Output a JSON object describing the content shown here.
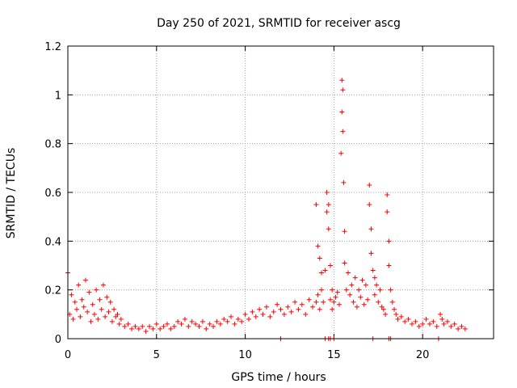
{
  "chart_data": {
    "type": "scatter",
    "title": "Day 250 of 2021, SRMTID for receiver ascg",
    "xlabel": "GPS time / hours",
    "ylabel": "SRMTID / TECUs",
    "xlim": [
      0,
      24
    ],
    "ylim": [
      0,
      1.2
    ],
    "xticks": [
      0,
      5,
      10,
      15,
      20
    ],
    "xtick_labels": [
      "0",
      "5",
      "10",
      "15",
      "20"
    ],
    "yticks": [
      0,
      0.2,
      0.4,
      0.6,
      0.8,
      1.0,
      1.2
    ],
    "ytick_labels": [
      "0",
      "0.2",
      "0.4",
      "0.6",
      "0.8",
      "1",
      "1.2"
    ],
    "grid": true,
    "marker": "+",
    "color": "#ff0000",
    "series": [
      {
        "name": "SRMTID",
        "x": [
          0.0,
          0.1,
          0.2,
          0.3,
          0.4,
          0.5,
          0.6,
          0.7,
          0.8,
          0.9,
          1.0,
          1.1,
          1.2,
          1.3,
          1.4,
          1.5,
          1.6,
          1.7,
          1.8,
          1.9,
          2.0,
          2.1,
          2.2,
          2.3,
          2.4,
          2.5,
          2.6,
          2.7,
          2.8,
          2.9,
          3.0,
          3.2,
          3.4,
          3.6,
          3.8,
          4.0,
          4.2,
          4.4,
          4.6,
          4.8,
          5.0,
          5.2,
          5.4,
          5.6,
          5.8,
          6.0,
          6.2,
          6.4,
          6.6,
          6.8,
          7.0,
          7.2,
          7.4,
          7.6,
          7.8,
          8.0,
          8.2,
          8.4,
          8.6,
          8.8,
          9.0,
          9.2,
          9.4,
          9.6,
          9.8,
          10.0,
          10.2,
          10.4,
          10.6,
          10.8,
          11.0,
          11.2,
          11.4,
          11.6,
          11.8,
          12.0,
          12.2,
          12.4,
          12.6,
          12.8,
          13.0,
          13.2,
          13.4,
          13.6,
          13.8,
          14.0,
          14.0,
          14.1,
          14.1,
          14.2,
          14.2,
          14.3,
          14.3,
          14.4,
          14.5,
          14.6,
          14.6,
          14.7,
          14.7,
          14.8,
          14.8,
          14.9,
          14.9,
          15.0,
          15.1,
          15.2,
          15.3,
          15.4,
          15.45,
          15.45,
          15.5,
          15.5,
          15.55,
          15.6,
          15.6,
          15.7,
          15.8,
          15.9,
          16.0,
          16.1,
          16.2,
          16.3,
          16.4,
          16.5,
          16.6,
          16.7,
          16.8,
          16.9,
          17.0,
          17.0,
          17.1,
          17.1,
          17.2,
          17.3,
          17.3,
          17.4,
          17.5,
          17.6,
          17.7,
          17.8,
          17.9,
          18.0,
          18.0,
          18.1,
          18.1,
          18.2,
          18.3,
          18.4,
          18.5,
          18.6,
          18.8,
          19.0,
          19.2,
          19.4,
          19.6,
          19.8,
          20.0,
          20.2,
          20.4,
          20.6,
          20.8,
          21.0,
          21.1,
          21.2,
          21.4,
          21.6,
          21.8,
          22.0,
          22.2,
          22.4,
          12.0,
          14.5,
          14.7,
          14.8,
          15.0,
          17.2,
          18.1,
          18.2,
          20.9
        ],
        "y": [
          0.27,
          0.1,
          0.18,
          0.08,
          0.15,
          0.12,
          0.22,
          0.09,
          0.16,
          0.13,
          0.24,
          0.11,
          0.19,
          0.07,
          0.14,
          0.1,
          0.2,
          0.08,
          0.16,
          0.12,
          0.22,
          0.09,
          0.17,
          0.11,
          0.15,
          0.07,
          0.12,
          0.09,
          0.1,
          0.06,
          0.08,
          0.05,
          0.06,
          0.04,
          0.05,
          0.04,
          0.05,
          0.03,
          0.05,
          0.04,
          0.06,
          0.04,
          0.05,
          0.06,
          0.04,
          0.05,
          0.07,
          0.06,
          0.08,
          0.05,
          0.07,
          0.06,
          0.05,
          0.07,
          0.04,
          0.06,
          0.05,
          0.07,
          0.06,
          0.08,
          0.07,
          0.09,
          0.06,
          0.08,
          0.07,
          0.1,
          0.08,
          0.11,
          0.09,
          0.12,
          0.1,
          0.13,
          0.09,
          0.11,
          0.14,
          0.12,
          0.1,
          0.13,
          0.11,
          0.15,
          0.12,
          0.14,
          0.1,
          0.16,
          0.13,
          0.55,
          0.15,
          0.38,
          0.18,
          0.12,
          0.33,
          0.2,
          0.27,
          0.15,
          0.28,
          0.6,
          0.52,
          0.55,
          0.45,
          0.16,
          0.3,
          0.12,
          0.2,
          0.15,
          0.17,
          0.19,
          0.14,
          0.76,
          0.93,
          1.06,
          1.02,
          0.85,
          0.64,
          0.44,
          0.31,
          0.2,
          0.27,
          0.18,
          0.22,
          0.15,
          0.25,
          0.13,
          0.2,
          0.17,
          0.24,
          0.14,
          0.22,
          0.16,
          0.63,
          0.55,
          0.45,
          0.35,
          0.28,
          0.18,
          0.25,
          0.22,
          0.15,
          0.2,
          0.13,
          0.12,
          0.1,
          0.59,
          0.52,
          0.4,
          0.3,
          0.2,
          0.15,
          0.12,
          0.1,
          0.08,
          0.09,
          0.07,
          0.08,
          0.06,
          0.07,
          0.05,
          0.06,
          0.08,
          0.06,
          0.07,
          0.05,
          0.1,
          0.08,
          0.06,
          0.07,
          0.05,
          0.06,
          0.04,
          0.05,
          0.04,
          0.0,
          0.0,
          0.0,
          0.0,
          0.0,
          0.0,
          0.0,
          0.0,
          0.0
        ]
      }
    ]
  }
}
